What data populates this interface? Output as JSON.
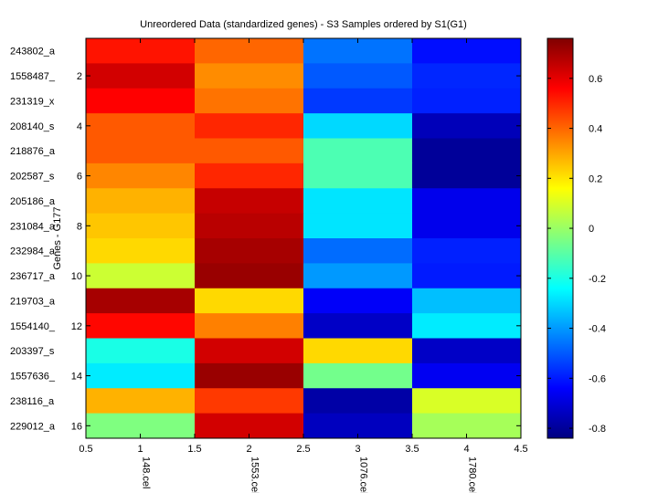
{
  "chart_data": {
    "type": "heatmap",
    "title": "Unreordered Data (standardized genes) - S3 Samples ordered by S1(G1)",
    "ylabel": "Genes - G177",
    "xlim": [
      0.5,
      4.5
    ],
    "ylim": [
      0.5,
      16.5
    ],
    "x_ticks": [
      "0.5",
      "1",
      "1.5",
      "2",
      "2.5",
      "3",
      "3.5",
      "4",
      "4.5"
    ],
    "y_ticks": [
      "2",
      "4",
      "6",
      "8",
      "10",
      "12",
      "14",
      "16"
    ],
    "columns": [
      "148.cel",
      "1553.cel",
      "1076.cel",
      "1780.cel"
    ],
    "rows": [
      "243802_a",
      "1558487_",
      "231319_x",
      "208140_s",
      "218876_a",
      "202587_s",
      "205186_a",
      "231084_a",
      "232984_a",
      "236717_a",
      "219703_a",
      "1554140_",
      "203397_s",
      "1557636_",
      "238116_a",
      "229012_a"
    ],
    "values": [
      [
        0.53,
        0.4,
        -0.46,
        -0.62
      ],
      [
        0.63,
        0.34,
        -0.5,
        -0.58
      ],
      [
        0.56,
        0.38,
        -0.55,
        -0.59
      ],
      [
        0.42,
        0.5,
        -0.3,
        -0.75
      ],
      [
        0.42,
        0.42,
        -0.12,
        -0.8
      ],
      [
        0.35,
        0.5,
        -0.12,
        -0.8
      ],
      [
        0.28,
        0.65,
        -0.28,
        -0.67
      ],
      [
        0.25,
        0.67,
        -0.28,
        -0.67
      ],
      [
        0.22,
        0.7,
        -0.47,
        -0.59
      ],
      [
        0.08,
        0.72,
        -0.4,
        -0.6
      ],
      [
        0.7,
        0.22,
        -0.65,
        -0.34
      ],
      [
        0.55,
        0.36,
        -0.73,
        -0.27
      ],
      [
        -0.2,
        0.63,
        0.22,
        -0.73
      ],
      [
        -0.27,
        0.72,
        -0.06,
        -0.66
      ],
      [
        0.28,
        0.47,
        -0.78,
        0.1
      ],
      [
        -0.04,
        0.63,
        -0.74,
        0.02
      ]
    ],
    "colormap": "jet",
    "colorbar": {
      "clim": [
        -0.84,
        0.76
      ],
      "ticks": [
        -0.8,
        -0.6,
        -0.4,
        -0.2,
        0,
        0.2,
        0.4,
        0.6
      ],
      "tick_labels": [
        "-0.8",
        "-0.6",
        "-0.4",
        "-0.2",
        "0",
        "0.2",
        "0.4",
        "0.6"
      ]
    },
    "grid": false
  }
}
